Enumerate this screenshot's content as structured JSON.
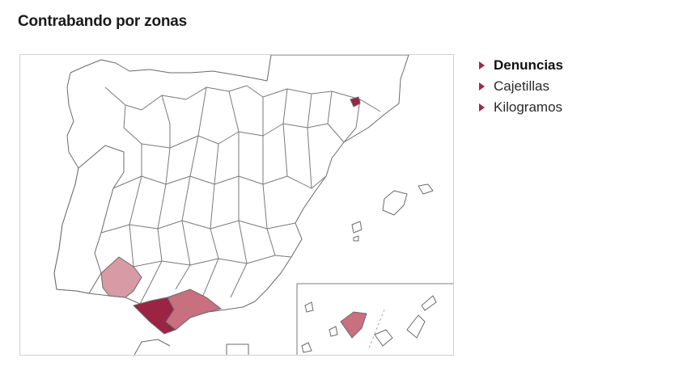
{
  "title": "Contrabando por zonas",
  "legend": {
    "items": [
      {
        "label": "Denuncias",
        "active": true
      },
      {
        "label": "Cajetillas",
        "active": false
      },
      {
        "label": "Kilogramos",
        "active": false
      }
    ]
  },
  "colors": {
    "highest": "#9b2445",
    "high": "#c8707f",
    "medium": "#d89aa4",
    "base": "#ffffff",
    "border": "#6a6a6a",
    "marker": "#9a2a4a"
  },
  "highlighted_provinces": [
    {
      "name": "Cádiz",
      "level": "highest"
    },
    {
      "name": "Málaga",
      "level": "high"
    },
    {
      "name": "Huelva",
      "level": "medium"
    },
    {
      "name": "Girona",
      "level": "highest"
    },
    {
      "name": "Santa Cruz de Tenerife",
      "level": "high"
    }
  ]
}
